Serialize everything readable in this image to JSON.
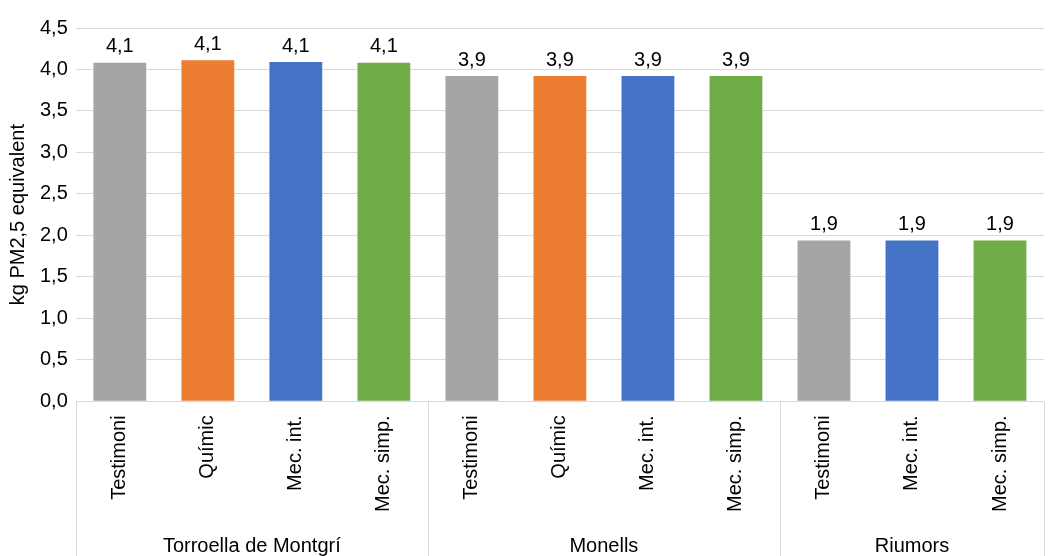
{
  "chart_data": {
    "type": "bar",
    "ylabel": "kg PM2,5 equivalent",
    "categories": [
      "Testimoni",
      "Químic",
      "Mec. int.",
      "Mec. simp.",
      "Testimoni",
      "Químic",
      "Mec. int.",
      "Mec. simp.",
      "Testimoni",
      "Mec. int.",
      "Mec. simp."
    ],
    "values": [
      4.08,
      4.11,
      4.09,
      4.08,
      3.92,
      3.92,
      3.92,
      3.92,
      1.94,
      1.94,
      1.94
    ],
    "value_labels": [
      "4,1",
      "4,1",
      "4,1",
      "4,1",
      "3,9",
      "3,9",
      "3,9",
      "3,9",
      "1,9",
      "1,9",
      "1,9"
    ],
    "colors": [
      "#a5a5a5",
      "#ed7d31",
      "#4472c4",
      "#70ad47",
      "#a5a5a5",
      "#ed7d31",
      "#4472c4",
      "#70ad47",
      "#a5a5a5",
      "#4472c4",
      "#70ad47"
    ],
    "annotations": [
      "Torroella de Montgrí",
      "Monells",
      "Riumors"
    ],
    "ylim": [
      0,
      4.5
    ],
    "yticks": [
      {
        "value": 0,
        "label": "0,0"
      },
      {
        "value": 0.5,
        "label": "0,5"
      },
      {
        "value": 1,
        "label": "1,0"
      },
      {
        "value": 1.5,
        "label": "1,5"
      },
      {
        "value": 2,
        "label": "2,0"
      },
      {
        "value": 2.5,
        "label": "2,5"
      },
      {
        "value": 3,
        "label": "3,0"
      },
      {
        "value": 3.5,
        "label": "3,5"
      },
      {
        "value": 4,
        "label": "4,0"
      },
      {
        "value": 4.5,
        "label": "4,5"
      }
    ],
    "grid": "y",
    "legend": false
  }
}
